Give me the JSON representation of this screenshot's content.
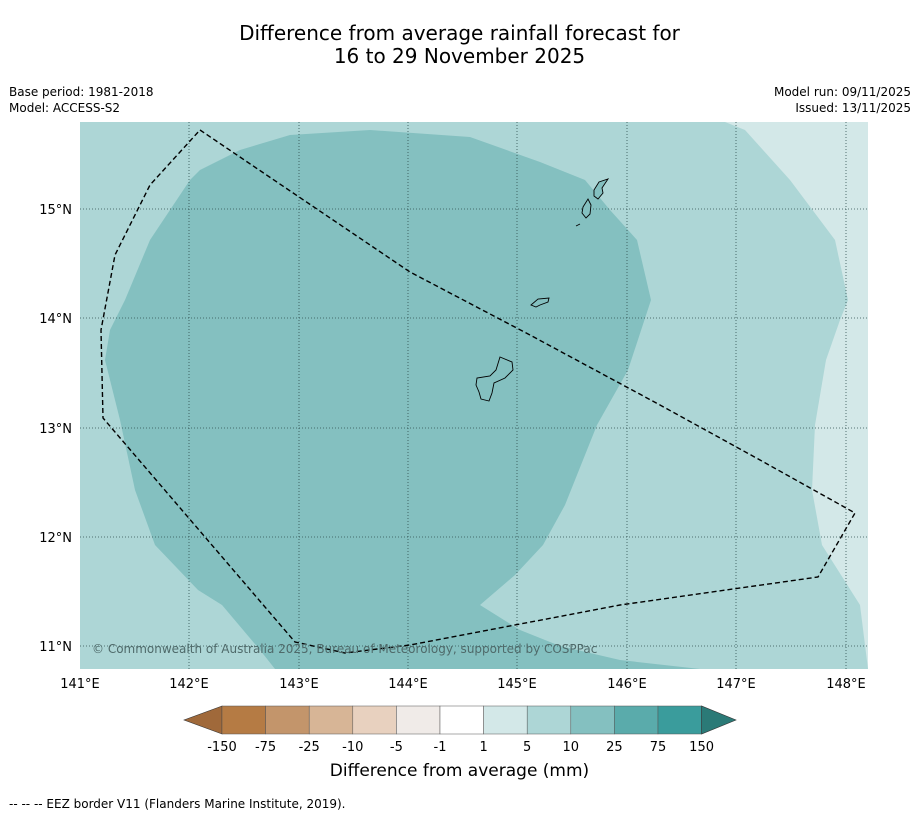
{
  "header": {
    "title_line1": "Difference from average rainfall forecast for",
    "title_line2": "16 to 29 November 2025",
    "base_period": "Base period: 1981-2018",
    "model": "Model: ACCESS-S2",
    "model_run": "Model run: 09/11/2025",
    "issued": "Issued: 13/11/2025"
  },
  "map": {
    "longitude_ticks": [
      "141°E",
      "142°E",
      "143°E",
      "144°E",
      "145°E",
      "146°E",
      "147°E",
      "148°E"
    ],
    "latitude_ticks": [
      "15°N",
      "14°N",
      "13°N",
      "12°N",
      "11°N"
    ],
    "copyright": "© Commonwealth of Australia 2025, Bureau of Meteorology, supported by COSPPac",
    "forecast_categories_shown": [
      "1 to 5",
      "5 to 10",
      "10 to 25"
    ]
  },
  "colorbar": {
    "labels": [
      "-150",
      "-75",
      "-25",
      "-10",
      "-5",
      "-1",
      "1",
      "5",
      "10",
      "25",
      "75",
      "150"
    ],
    "colors": [
      "#a0693a",
      "#b57b44",
      "#c3956b",
      "#d7b596",
      "#e8d1bf",
      "#f0ebe8",
      "#ffffff",
      "#d3e8e8",
      "#add6d6",
      "#84c0c0",
      "#5aabab",
      "#3a9c9c",
      "#2b7a77"
    ],
    "title": "Difference from average (mm)"
  },
  "footer": {
    "legend_text": "--  --  -- EEZ border V11 (Flanders Marine Institute, 2019)."
  }
}
